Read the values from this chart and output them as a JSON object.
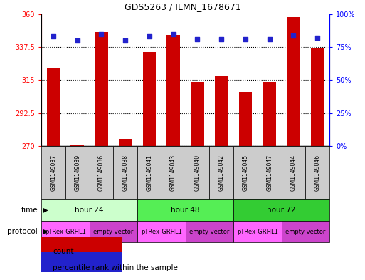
{
  "title": "GDS5263 / ILMN_1678671",
  "samples": [
    "GSM1149037",
    "GSM1149039",
    "GSM1149036",
    "GSM1149038",
    "GSM1149041",
    "GSM1149043",
    "GSM1149040",
    "GSM1149042",
    "GSM1149045",
    "GSM1149047",
    "GSM1149044",
    "GSM1149046"
  ],
  "counts": [
    323,
    271,
    348,
    275,
    334,
    346,
    314,
    318,
    307,
    314,
    358,
    337
  ],
  "percentiles": [
    83,
    80,
    85,
    80,
    83,
    85,
    81,
    81,
    81,
    81,
    84,
    82
  ],
  "ylim_left": [
    270,
    360
  ],
  "ylim_right": [
    0,
    100
  ],
  "yticks_left": [
    270,
    292.5,
    315,
    337.5,
    360
  ],
  "yticks_right": [
    0,
    25,
    50,
    75,
    100
  ],
  "bar_color": "#cc0000",
  "dot_color": "#2222cc",
  "time_groups": [
    {
      "label": "hour 24",
      "start": 0,
      "end": 4,
      "color": "#ccffcc"
    },
    {
      "label": "hour 48",
      "start": 4,
      "end": 8,
      "color": "#55ee55"
    },
    {
      "label": "hour 72",
      "start": 8,
      "end": 12,
      "color": "#33cc33"
    }
  ],
  "protocol_groups": [
    {
      "label": "pTRex-GRHL1",
      "start": 0,
      "end": 2,
      "color": "#ff66ff"
    },
    {
      "label": "empty vector",
      "start": 2,
      "end": 4,
      "color": "#cc44cc"
    },
    {
      "label": "pTRex-GRHL1",
      "start": 4,
      "end": 6,
      "color": "#ff66ff"
    },
    {
      "label": "empty vector",
      "start": 6,
      "end": 8,
      "color": "#cc44cc"
    },
    {
      "label": "pTRex-GRHL1",
      "start": 8,
      "end": 10,
      "color": "#ff66ff"
    },
    {
      "label": "empty vector",
      "start": 10,
      "end": 12,
      "color": "#cc44cc"
    }
  ],
  "legend_count_label": "count",
  "legend_pct_label": "percentile rank within the sample",
  "time_label": "time",
  "protocol_label": "protocol",
  "gsm_box_color": "#cccccc",
  "background_color": "#ffffff"
}
